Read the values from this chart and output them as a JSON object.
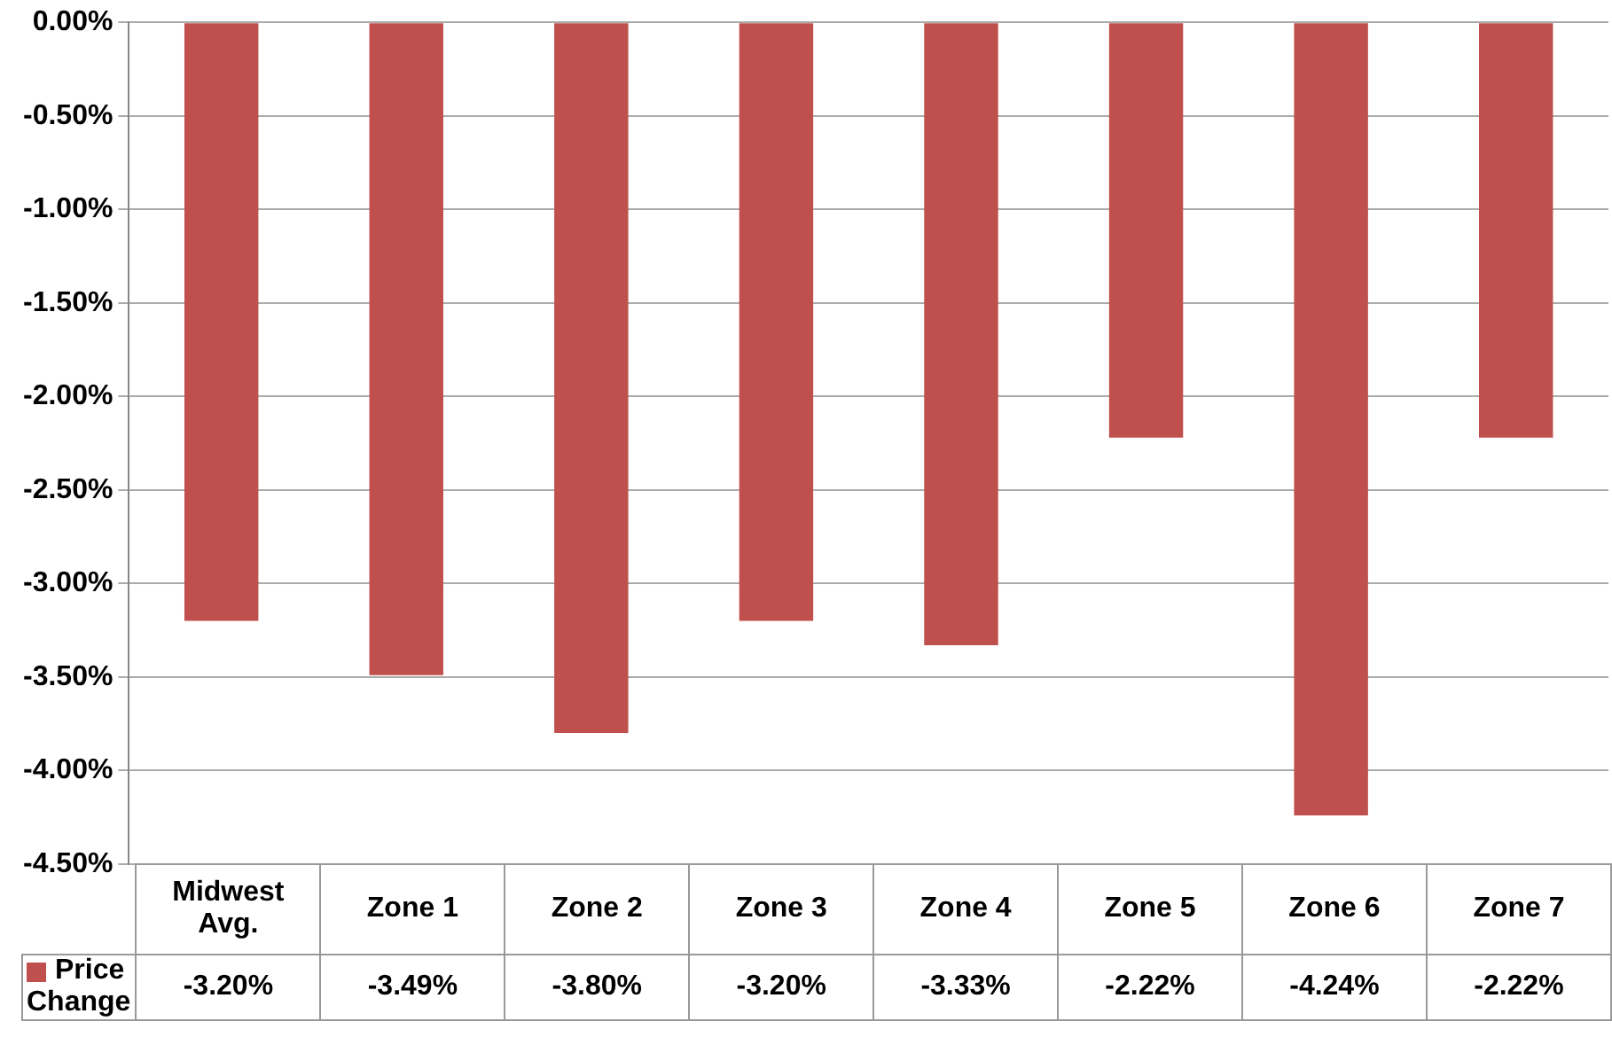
{
  "chart_data": {
    "type": "bar",
    "categories": [
      "Midwest Avg.",
      "Zone 1",
      "Zone 2",
      "Zone 3",
      "Zone 4",
      "Zone 5",
      "Zone 6",
      "Zone 7"
    ],
    "series": [
      {
        "name": "Price Change",
        "color": "#c0504d",
        "values": [
          -3.2,
          -3.49,
          -3.8,
          -3.2,
          -3.33,
          -2.22,
          -4.24,
          -2.22
        ],
        "value_labels": [
          "-3.20%",
          "-3.49%",
          "-3.80%",
          "-3.20%",
          "-3.33%",
          "-2.22%",
          "-4.24%",
          "-2.22%"
        ]
      }
    ],
    "ylim": [
      -4.5,
      0
    ],
    "yticks": [
      {
        "value": 0,
        "label": "0.00%"
      },
      {
        "value": -0.5,
        "label": "-0.50%"
      },
      {
        "value": -1,
        "label": "-1.00%"
      },
      {
        "value": -1.5,
        "label": "-1.50%"
      },
      {
        "value": -2,
        "label": "-2.00%"
      },
      {
        "value": -2.5,
        "label": "-2.50%"
      },
      {
        "value": -3,
        "label": "-3.00%"
      },
      {
        "value": -3.5,
        "label": "-3.50%"
      },
      {
        "value": -4,
        "label": "-4.00%"
      },
      {
        "value": -4.5,
        "label": "-4.50%"
      }
    ],
    "grid": "y",
    "legend": "bottom left"
  }
}
